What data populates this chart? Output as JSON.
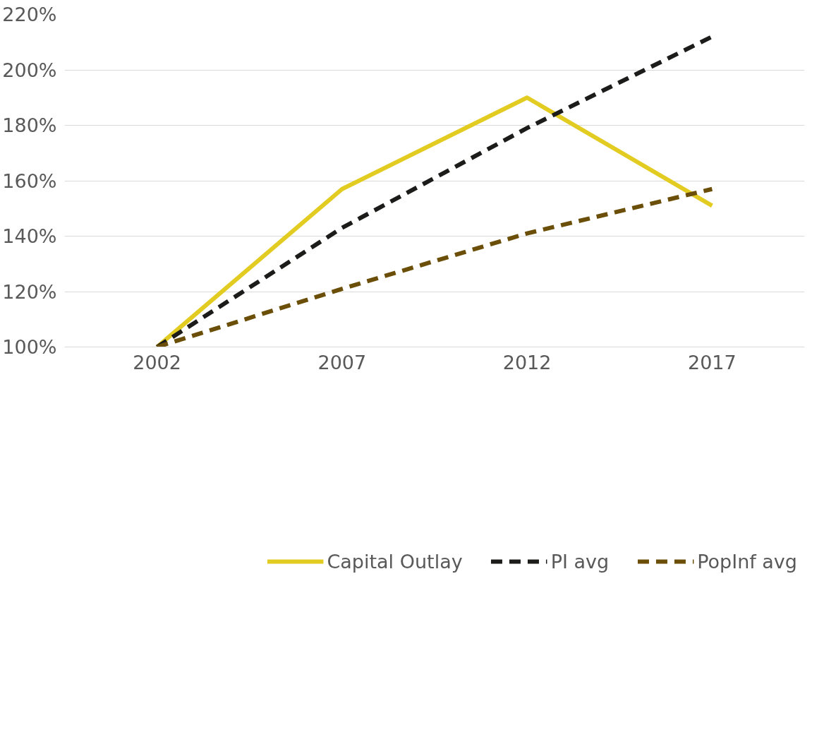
{
  "chart_data": {
    "type": "line",
    "categories": [
      "2002",
      "2007",
      "2012",
      "2017"
    ],
    "series": [
      {
        "name": "Capital Outlay",
        "color": "#e3cc22",
        "line_style": "solid",
        "values": [
          100,
          157,
          190,
          151
        ]
      },
      {
        "name": "PI avg",
        "color": "#1c1c1a",
        "line_style": "dashed",
        "values": [
          100,
          143,
          179,
          212
        ]
      },
      {
        "name": "PopInf avg",
        "color": "#6b4f08",
        "line_style": "dashed",
        "values": [
          100,
          121,
          141,
          157
        ]
      }
    ],
    "ylim": [
      100,
      220
    ],
    "yticks": [
      {
        "value": 100,
        "label": "100%"
      },
      {
        "value": 120,
        "label": "120%"
      },
      {
        "value": 140,
        "label": "140%"
      },
      {
        "value": 160,
        "label": "160%"
      },
      {
        "value": 180,
        "label": "180%"
      },
      {
        "value": 200,
        "label": "200%"
      },
      {
        "value": 220,
        "label": "220%"
      }
    ],
    "grid": "y",
    "legend": "bottom",
    "marker": "none"
  }
}
